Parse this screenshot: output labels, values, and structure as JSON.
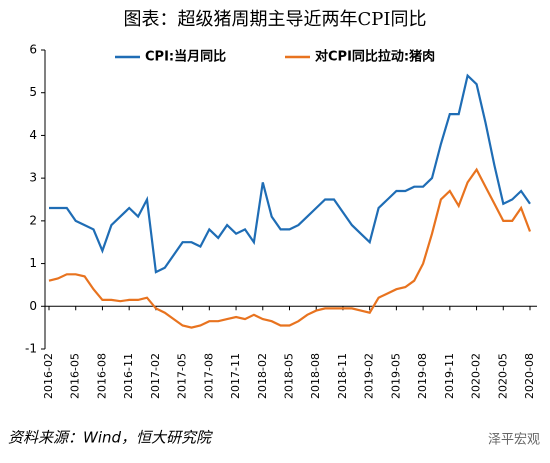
{
  "chart_data": {
    "type": "line",
    "title": "图表：超级猪周期主导近两年CPI同比",
    "source": "资料来源：Wind，恒大研究院",
    "watermark": "泽平宏观",
    "categories": [
      "2016-02",
      null,
      null,
      "2016-05",
      null,
      null,
      "2016-08",
      null,
      null,
      "2016-11",
      null,
      null,
      "2017-02",
      null,
      null,
      "2017-05",
      null,
      null,
      "2017-08",
      null,
      null,
      "2017-11",
      null,
      null,
      "2018-02",
      null,
      null,
      "2018-05",
      null,
      null,
      "2018-08",
      null,
      null,
      "2018-11",
      null,
      null,
      "2019-02",
      null,
      null,
      "2019-05",
      null,
      null,
      "2019-08",
      null,
      null,
      "2019-11",
      null,
      null,
      "2020-02",
      null,
      null,
      "2020-05",
      null,
      null,
      "2020-08"
    ],
    "series": [
      {
        "name": "CPI:当月同比",
        "color": "#1f6db5",
        "values": [
          2.3,
          2.3,
          2.3,
          2.0,
          1.9,
          1.8,
          1.3,
          1.9,
          2.1,
          2.3,
          2.1,
          2.5,
          0.8,
          0.9,
          1.2,
          1.5,
          1.5,
          1.4,
          1.8,
          1.6,
          1.9,
          1.7,
          1.8,
          1.5,
          2.9,
          2.1,
          1.8,
          1.8,
          1.9,
          2.1,
          2.3,
          2.5,
          2.5,
          2.2,
          1.9,
          1.7,
          1.5,
          2.3,
          2.5,
          2.7,
          2.7,
          2.8,
          2.8,
          3.0,
          3.8,
          4.5,
          4.5,
          5.4,
          5.2,
          4.3,
          3.3,
          2.4,
          2.5,
          2.7,
          2.4
        ]
      },
      {
        "name": "对CPI同比拉动:猪肉",
        "color": "#e8731f",
        "values": [
          0.6,
          0.65,
          0.75,
          0.75,
          0.7,
          0.4,
          0.15,
          0.15,
          0.12,
          0.15,
          0.15,
          0.2,
          -0.05,
          -0.15,
          -0.3,
          -0.45,
          -0.5,
          -0.45,
          -0.35,
          -0.35,
          -0.3,
          -0.25,
          -0.3,
          -0.2,
          -0.3,
          -0.35,
          -0.45,
          -0.45,
          -0.35,
          -0.2,
          -0.1,
          -0.05,
          -0.05,
          -0.05,
          -0.05,
          -0.1,
          -0.15,
          0.2,
          0.3,
          0.4,
          0.45,
          0.6,
          1.0,
          1.7,
          2.5,
          2.7,
          2.35,
          2.9,
          3.2,
          2.8,
          2.4,
          2.0,
          2.0,
          2.3,
          1.75
        ]
      }
    ],
    "ylim": [
      -1,
      6
    ],
    "yticks": [
      -1,
      0,
      1,
      2,
      3,
      4,
      5,
      6
    ],
    "legend": "top"
  }
}
